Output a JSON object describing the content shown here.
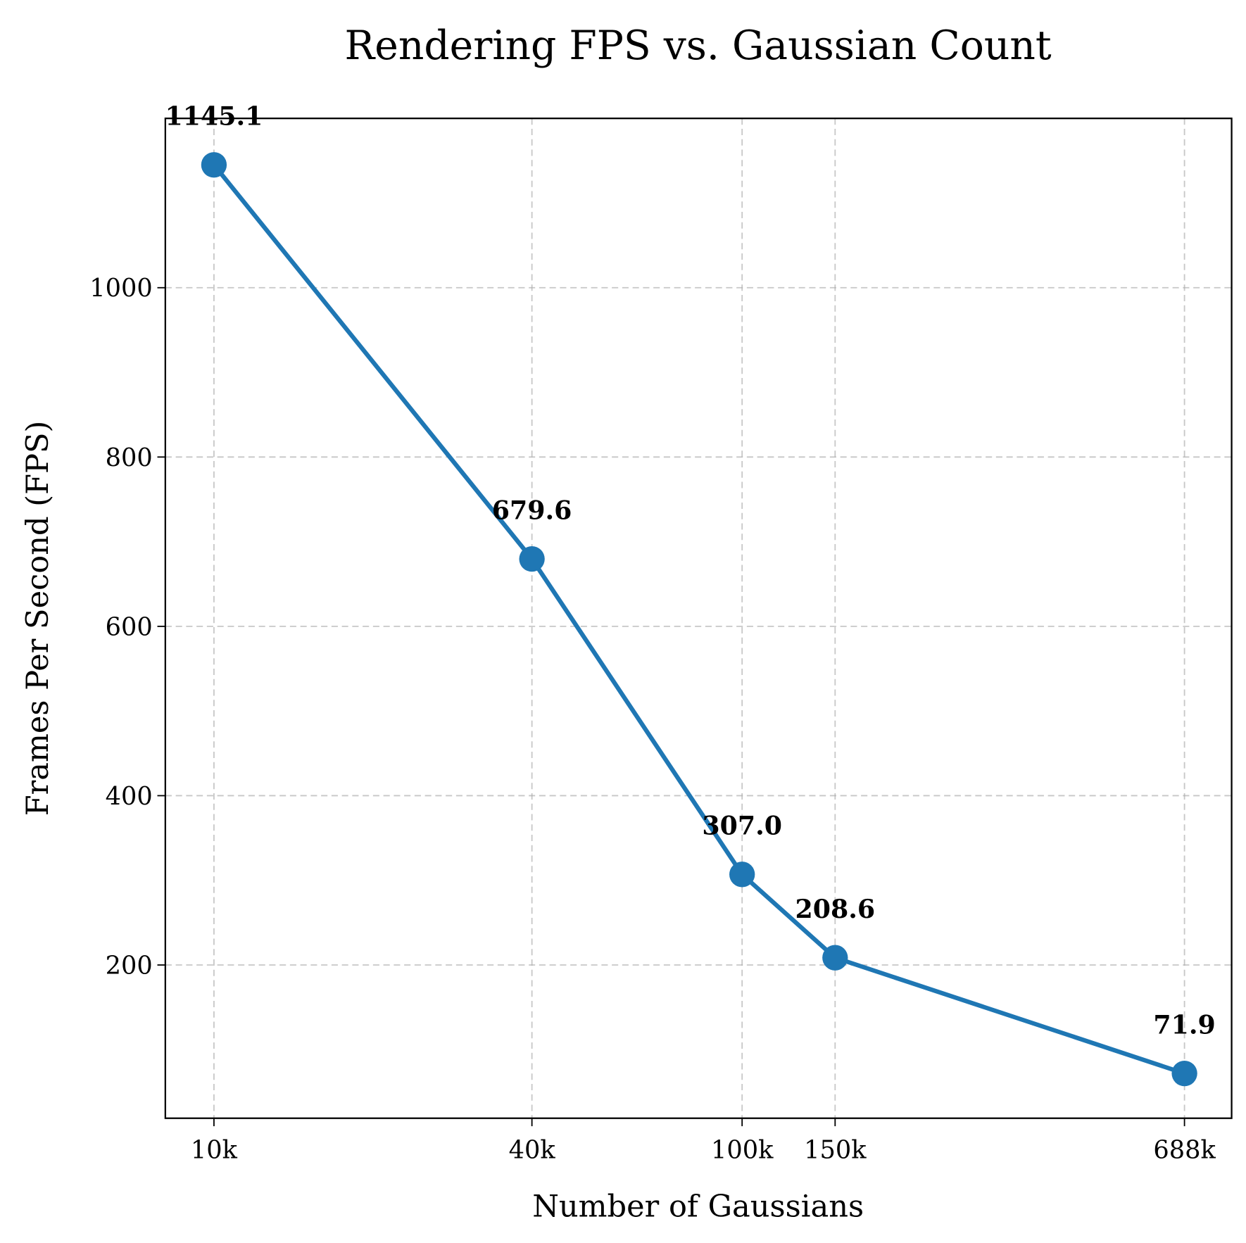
{
  "chart_data": {
    "type": "line",
    "title": "Rendering FPS vs. Gaussian Count",
    "xlabel": "Number of Gaussians",
    "ylabel": "Frames Per Second (FPS)",
    "x_scale": "log",
    "x": [
      10000,
      40000,
      100000,
      150000,
      688000
    ],
    "x_tick_labels": [
      "10k",
      "40k",
      "100k",
      "150k",
      "688k"
    ],
    "xlim": [
      8090,
      845000
    ],
    "ylim": [
      19,
      1200
    ],
    "y_ticks": [
      200,
      400,
      600,
      800,
      1000
    ],
    "series": [
      {
        "values": [
          1145.1,
          679.6,
          307.0,
          208.6,
          71.9
        ],
        "data_labels": [
          "1145.1",
          "679.6",
          "307.0",
          "208.6",
          "71.9"
        ],
        "color": "#1f77b4",
        "marker": "circle"
      }
    ],
    "grid": true,
    "grid_style": "dashed",
    "legend": "none"
  }
}
